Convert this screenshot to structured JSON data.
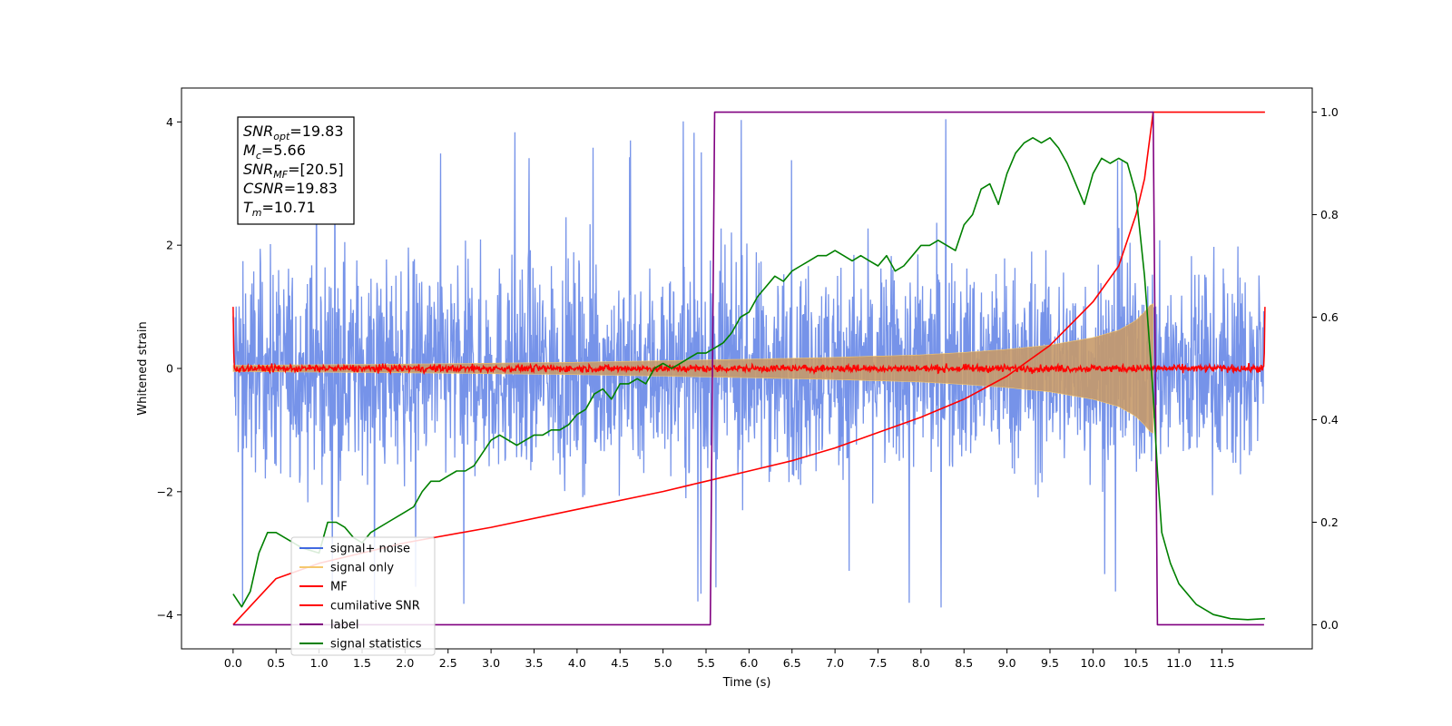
{
  "chart_data": {
    "type": "line",
    "title": "",
    "xlabel": "Time (s)",
    "ylabel": "Whitened strain",
    "xlim": [
      -0.6,
      12.55
    ],
    "ylim": [
      -4.55,
      4.55
    ],
    "y2lim": [
      -0.047,
      1.047
    ],
    "grid": false,
    "x_ticks": [
      0.0,
      0.5,
      1.0,
      1.5,
      2.0,
      2.5,
      3.0,
      3.5,
      4.0,
      4.5,
      5.0,
      5.5,
      6.0,
      6.5,
      7.0,
      7.5,
      8.0,
      8.5,
      9.0,
      9.5,
      10.0,
      10.5,
      11.0,
      11.5
    ],
    "x_tick_labels": [
      "0.0",
      "0.5",
      "1.0",
      "1.5",
      "2.0",
      "2.5",
      "3.0",
      "3.5",
      "4.0",
      "4.5",
      "5.0",
      "5.5",
      "6.0",
      "6.5",
      "7.0",
      "7.5",
      "8.0",
      "8.5",
      "9.0",
      "9.5",
      "10.0",
      "10.5",
      "11.0",
      "11.5"
    ],
    "y_ticks": [
      -4,
      -2,
      0,
      2,
      4
    ],
    "y_tick_labels": [
      "−4",
      "−2",
      "0",
      "2",
      "4"
    ],
    "y2_ticks": [
      0.0,
      0.2,
      0.4,
      0.6,
      0.8,
      1.0
    ],
    "y2_tick_labels": [
      "0.0",
      "0.2",
      "0.4",
      "0.6",
      "0.8",
      "1.0"
    ],
    "legend_position": "lower-left",
    "info_box": {
      "lines": [
        {
          "sym": "SNR",
          "sub": "opt",
          "value": "=19.83"
        },
        {
          "sym": "M",
          "sub": "c",
          "value": "=5.66"
        },
        {
          "sym": "SNR",
          "sub": "MF",
          "value": "=[20.5]"
        },
        {
          "sym": "CSNR",
          "sub": "",
          "value": "=19.83"
        },
        {
          "sym": "T",
          "sub": "m",
          "value": "=10.71"
        }
      ]
    },
    "series": [
      {
        "name": "signal+ noise",
        "color": "#4169e1",
        "axis": "left",
        "x_range": [
          0.0,
          11.99
        ],
        "amplitude_typical": 1.6,
        "amplitude_peaks": 4.1
      },
      {
        "name": "signal only",
        "color": "#f5c86e",
        "axis": "left",
        "x_range": [
          0.0,
          10.7
        ],
        "envelope": {
          "x": [
            0,
            2,
            4,
            6,
            7,
            8,
            8.5,
            9,
            9.5,
            10,
            10.3,
            10.5,
            10.6,
            10.68
          ],
          "amplitude": [
            0.05,
            0.07,
            0.1,
            0.15,
            0.18,
            0.22,
            0.26,
            0.31,
            0.38,
            0.5,
            0.62,
            0.78,
            0.92,
            1.05
          ]
        }
      },
      {
        "name": "MF",
        "color": "#ff0000",
        "axis": "left",
        "x_range": [
          0.0,
          12.0
        ],
        "baseline": 0.0,
        "noise_amplitude": 0.07,
        "edge_value": 1.0
      },
      {
        "name": "cumilative SNR",
        "color": "#ff0000",
        "axis": "right",
        "x": [
          0,
          0.5,
          1,
          1.5,
          2,
          3,
          4,
          5,
          5.5,
          6,
          6.5,
          7,
          7.5,
          8,
          8.5,
          9,
          9.5,
          10,
          10.3,
          10.5,
          10.6,
          10.7,
          11,
          12
        ],
        "y": [
          0.0,
          0.09,
          0.12,
          0.14,
          0.16,
          0.19,
          0.225,
          0.26,
          0.28,
          0.3,
          0.32,
          0.345,
          0.375,
          0.405,
          0.44,
          0.485,
          0.545,
          0.63,
          0.7,
          0.8,
          0.87,
          1.0,
          1.0,
          1.0
        ]
      },
      {
        "name": "label",
        "color": "#800080",
        "axis": "right",
        "x": [
          0.0,
          5.55,
          5.6,
          10.7,
          10.75,
          11.99
        ],
        "y": [
          0,
          0,
          1,
          1,
          0,
          0
        ]
      },
      {
        "name": "signal statistics",
        "color": "#008000",
        "axis": "right",
        "x": [
          0.0,
          0.1,
          0.2,
          0.3,
          0.4,
          0.5,
          0.6,
          0.8,
          1.0,
          1.1,
          1.2,
          1.3,
          1.4,
          1.5,
          1.6,
          1.8,
          2.0,
          2.1,
          2.2,
          2.3,
          2.4,
          2.5,
          2.6,
          2.7,
          2.8,
          3.0,
          3.1,
          3.2,
          3.3,
          3.4,
          3.5,
          3.6,
          3.7,
          3.8,
          3.9,
          4.0,
          4.1,
          4.2,
          4.3,
          4.4,
          4.5,
          4.6,
          4.7,
          4.8,
          4.9,
          5.0,
          5.1,
          5.2,
          5.3,
          5.4,
          5.5,
          5.6,
          5.7,
          5.8,
          5.9,
          6.0,
          6.1,
          6.2,
          6.3,
          6.4,
          6.5,
          6.6,
          6.7,
          6.8,
          6.9,
          7.0,
          7.1,
          7.2,
          7.3,
          7.4,
          7.5,
          7.6,
          7.7,
          7.8,
          7.9,
          8.0,
          8.1,
          8.2,
          8.3,
          8.4,
          8.5,
          8.6,
          8.7,
          8.8,
          8.9,
          9.0,
          9.1,
          9.2,
          9.3,
          9.4,
          9.5,
          9.6,
          9.7,
          9.8,
          9.9,
          10.0,
          10.1,
          10.2,
          10.3,
          10.4,
          10.5,
          10.6,
          10.7,
          10.75,
          10.8,
          10.9,
          11.0,
          11.2,
          11.4,
          11.6,
          11.8,
          12.0
        ],
        "y": [
          0.06,
          0.035,
          0.065,
          0.14,
          0.18,
          0.18,
          0.17,
          0.15,
          0.14,
          0.2,
          0.2,
          0.19,
          0.17,
          0.16,
          0.18,
          0.2,
          0.22,
          0.23,
          0.26,
          0.28,
          0.28,
          0.29,
          0.3,
          0.3,
          0.31,
          0.36,
          0.37,
          0.36,
          0.35,
          0.36,
          0.37,
          0.37,
          0.38,
          0.38,
          0.39,
          0.41,
          0.42,
          0.45,
          0.46,
          0.44,
          0.47,
          0.47,
          0.48,
          0.47,
          0.5,
          0.51,
          0.5,
          0.51,
          0.52,
          0.53,
          0.53,
          0.54,
          0.55,
          0.57,
          0.6,
          0.61,
          0.64,
          0.66,
          0.68,
          0.67,
          0.69,
          0.7,
          0.71,
          0.72,
          0.72,
          0.73,
          0.72,
          0.71,
          0.72,
          0.71,
          0.7,
          0.72,
          0.69,
          0.7,
          0.72,
          0.74,
          0.74,
          0.75,
          0.74,
          0.73,
          0.78,
          0.8,
          0.85,
          0.86,
          0.82,
          0.88,
          0.92,
          0.94,
          0.95,
          0.94,
          0.95,
          0.93,
          0.9,
          0.86,
          0.82,
          0.88,
          0.91,
          0.9,
          0.91,
          0.9,
          0.84,
          0.68,
          0.45,
          0.3,
          0.18,
          0.12,
          0.08,
          0.04,
          0.02,
          0.012,
          0.01,
          0.012
        ]
      }
    ]
  }
}
